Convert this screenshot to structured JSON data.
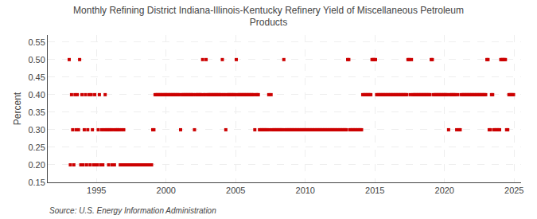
{
  "chart_data": {
    "type": "scatter",
    "title": "Monthly Refining District Indiana-Illinois-Kentucky Refinery Yield of Miscellaneous Petroleum\nProducts",
    "ylabel": "Percent",
    "annotations": [
      "Source: U.S. Energy Information Administration"
    ],
    "color": "#cc0000",
    "marker": "square",
    "line_style": "dashed",
    "grid": true,
    "xlim": [
      1991.5,
      2025.5
    ],
    "xticks": [
      1995,
      2000,
      2005,
      2010,
      2015,
      2020,
      2025
    ],
    "ylim": [
      0.15,
      0.57
    ],
    "yticks": [
      0.15,
      {
        "value": 0.2,
        "label": "0.20"
      },
      0.25,
      {
        "value": 0.3,
        "label": "0.30"
      },
      0.35,
      {
        "value": 0.4,
        "label": "0.40"
      },
      0.45,
      {
        "value": 0.5,
        "label": "0.50"
      },
      0.55
    ],
    "x": [
      1993.0416666667,
      1993.125,
      1993.2083333333,
      1993.2916666667,
      1993.375,
      1993.4583333333,
      1993.5416666667,
      1993.625,
      1993.7083333333,
      1993.7916666667,
      1993.875,
      1993.9583333333,
      1994.0416666667,
      1994.125,
      1994.2083333333,
      1994.2916666667,
      1994.375,
      1994.4583333333,
      1994.5416666667,
      1994.625,
      1994.7083333333,
      1994.7916666667,
      1994.875,
      1994.9583333333,
      1995.0416666667,
      1995.125,
      1995.2083333333,
      1995.2916666667,
      1995.375,
      1995.4583333333,
      1995.5416666667,
      1995.625,
      1995.7083333333,
      1995.7916666667,
      1995.875,
      1995.9583333333,
      1996.0416666667,
      1996.125,
      1996.2083333333,
      1996.2916666667,
      1996.375,
      1996.4583333333,
      1996.5416666667,
      1996.625,
      1996.7083333333,
      1996.7916666667,
      1996.875,
      1996.9583333333,
      1997.0416666667,
      1997.125,
      1997.2083333333,
      1997.2916666667,
      1997.375,
      1997.4583333333,
      1997.5416666667,
      1997.625,
      1997.7083333333,
      1997.7916666667,
      1997.875,
      1997.9583333333,
      1998.0416666667,
      1998.125,
      1998.2083333333,
      1998.2916666667,
      1998.375,
      1998.4583333333,
      1998.5416666667,
      1998.625,
      1998.7083333333,
      1998.7916666667,
      1998.875,
      1998.9583333333,
      1999.0416666667,
      1999.125,
      1999.2083333333,
      1999.2916666667,
      1999.375,
      1999.4583333333,
      1999.5416666667,
      1999.625,
      1999.7083333333,
      1999.7916666667,
      1999.875,
      1999.9583333333,
      2000.0416666667,
      2000.125,
      2000.2083333333,
      2000.2916666667,
      2000.375,
      2000.4583333333,
      2000.5416666667,
      2000.625,
      2000.7083333333,
      2000.7916666667,
      2000.875,
      2000.9583333333,
      2001.0416666667,
      2001.125,
      2001.2083333333,
      2001.2916666667,
      2001.375,
      2001.4583333333,
      2001.5416666667,
      2001.625,
      2001.7083333333,
      2001.7916666667,
      2001.875,
      2001.9583333333,
      2002.0416666667,
      2002.125,
      2002.2083333333,
      2002.2916666667,
      2002.375,
      2002.4583333333,
      2002.5416666667,
      2002.625,
      2002.7083333333,
      2002.7916666667,
      2002.875,
      2002.9583333333,
      2003.0416666667,
      2003.125,
      2003.2083333333,
      2003.2916666667,
      2003.375,
      2003.4583333333,
      2003.5416666667,
      2003.625,
      2003.7083333333,
      2003.7916666667,
      2003.875,
      2003.9583333333,
      2004.0416666667,
      2004.125,
      2004.2083333333,
      2004.2916666667,
      2004.375,
      2004.4583333333,
      2004.5416666667,
      2004.625,
      2004.7083333333,
      2004.7916666667,
      2004.875,
      2004.9583333333,
      2005.0416666667,
      2005.125,
      2005.2083333333,
      2005.2916666667,
      2005.375,
      2005.4583333333,
      2005.5416666667,
      2005.625,
      2005.7083333333,
      2005.7916666667,
      2005.875,
      2005.9583333333,
      2006.0416666667,
      2006.125,
      2006.2083333333,
      2006.2916666667,
      2006.375,
      2006.4583333333,
      2006.5416666667,
      2006.625,
      2006.7083333333,
      2006.7916666667,
      2006.875,
      2006.9583333333,
      2007.0416666667,
      2007.125,
      2007.2083333333,
      2007.2916666667,
      2007.375,
      2007.4583333333,
      2007.5416666667,
      2007.625,
      2007.7083333333,
      2007.7916666667,
      2007.875,
      2007.9583333333,
      2008.0416666667,
      2008.125,
      2008.2083333333,
      2008.2916666667,
      2008.375,
      2008.4583333333,
      2008.5416666667,
      2008.625,
      2008.7083333333,
      2008.7916666667,
      2008.875,
      2008.9583333333,
      2009.0416666667,
      2009.125,
      2009.2083333333,
      2009.2916666667,
      2009.375,
      2009.4583333333,
      2009.5416666667,
      2009.625,
      2009.7083333333,
      2009.7916666667,
      2009.875,
      2009.9583333333,
      2010.0416666667,
      2010.125,
      2010.2083333333,
      2010.2916666667,
      2010.375,
      2010.4583333333,
      2010.5416666667,
      2010.625,
      2010.7083333333,
      2010.7916666667,
      2010.875,
      2010.9583333333,
      2011.0416666667,
      2011.125,
      2011.2083333333,
      2011.2916666667,
      2011.375,
      2011.4583333333,
      2011.5416666667,
      2011.625,
      2011.7083333333,
      2011.7916666667,
      2011.875,
      2011.9583333333,
      2012.0416666667,
      2012.125,
      2012.2083333333,
      2012.2916666667,
      2012.375,
      2012.4583333333,
      2012.5416666667,
      2012.625,
      2012.7083333333,
      2012.7916666667,
      2012.875,
      2012.9583333333,
      2013.0416666667,
      2013.125,
      2013.2083333333,
      2013.2916666667,
      2013.375,
      2013.4583333333,
      2013.5416666667,
      2013.625,
      2013.7083333333,
      2013.7916666667,
      2013.875,
      2013.9583333333,
      2014.0416666667,
      2014.125,
      2014.2083333333,
      2014.2916666667,
      2014.375,
      2014.4583333333,
      2014.5416666667,
      2014.625,
      2014.7083333333,
      2014.7916666667,
      2014.875,
      2014.9583333333,
      2015.0416666667,
      2015.125,
      2015.2083333333,
      2015.2916666667,
      2015.375,
      2015.4583333333,
      2015.5416666667,
      2015.625,
      2015.7083333333,
      2015.7916666667,
      2015.875,
      2015.9583333333,
      2016.0416666667,
      2016.125,
      2016.2083333333,
      2016.2916666667,
      2016.375,
      2016.4583333333,
      2016.5416666667,
      2016.625,
      2016.7083333333,
      2016.7916666667,
      2016.875,
      2016.9583333333,
      2017.0416666667,
      2017.125,
      2017.2083333333,
      2017.2916666667,
      2017.375,
      2017.4583333333,
      2017.5416666667,
      2017.625,
      2017.7083333333,
      2017.7916666667,
      2017.875,
      2017.9583333333,
      2018.0416666667,
      2018.125,
      2018.2083333333,
      2018.2916666667,
      2018.375,
      2018.4583333333,
      2018.5416666667,
      2018.625,
      2018.7083333333,
      2018.7916666667,
      2018.875,
      2018.9583333333,
      2019.0416666667,
      2019.125,
      2019.2083333333,
      2019.2916666667,
      2019.375,
      2019.4583333333,
      2019.5416666667,
      2019.625,
      2019.7083333333,
      2019.7916666667,
      2019.875,
      2019.9583333333,
      2020.0416666667,
      2020.125,
      2020.2083333333,
      2020.2916666667,
      2020.375,
      2020.4583333333,
      2020.5416666667,
      2020.625,
      2020.7083333333,
      2020.7916666667,
      2020.875,
      2020.9583333333,
      2021.0416666667,
      2021.125,
      2021.2083333333,
      2021.2916666667,
      2021.375,
      2021.4583333333,
      2021.5416666667,
      2021.625,
      2021.7083333333,
      2021.7916666667,
      2021.875,
      2021.9583333333,
      2022.0416666667,
      2022.125,
      2022.2083333333,
      2022.2916666667,
      2022.375,
      2022.4583333333,
      2022.5416666667,
      2022.625,
      2022.7083333333,
      2022.7916666667,
      2022.875,
      2022.9583333333,
      2023.0416666667,
      2023.125,
      2023.2083333333,
      2023.2916666667,
      2023.375,
      2023.4583333333,
      2023.5416666667,
      2023.625,
      2023.7083333333,
      2023.7916666667,
      2023.875,
      2023.9583333333,
      2024.0416666667,
      2024.125,
      2024.2083333333,
      2024.2916666667,
      2024.375,
      2024.4583333333,
      2024.5416666667,
      2024.625,
      2024.7083333333,
      2024.7916666667,
      2024.875,
      2024.9583333333
    ],
    "values": [
      0.5,
      0.2,
      0.4,
      0.3,
      0.2,
      0.4,
      0.3,
      0.4,
      0.3,
      0.5,
      0.2,
      0.4,
      0.2,
      0.3,
      0.4,
      0.2,
      0.3,
      0.4,
      0.2,
      0.4,
      0.3,
      0.2,
      0.4,
      0.2,
      0.2,
      0.3,
      0.4,
      0.2,
      0.3,
      0.2,
      0.3,
      0.4,
      0.3,
      0.3,
      0.2,
      0.3,
      0.3,
      0.2,
      0.3,
      0.2,
      0.3,
      0.3,
      0.3,
      0.3,
      0.2,
      0.3,
      0.2,
      0.3,
      0.2,
      0.2,
      0.2,
      0.2,
      0.2,
      0.2,
      0.2,
      0.2,
      0.2,
      0.2,
      0.2,
      0.2,
      0.2,
      0.2,
      0.2,
      0.2,
      0.2,
      0.2,
      0.2,
      0.2,
      0.2,
      0.2,
      0.2,
      0.2,
      0.3,
      0.3,
      0.4,
      0.4,
      0.4,
      0.4,
      0.4,
      0.4,
      0.4,
      0.4,
      0.4,
      0.4,
      0.4,
      0.4,
      0.4,
      0.4,
      0.4,
      0.4,
      0.4,
      0.4,
      0.4,
      0.4,
      0.4,
      0.4,
      0.3,
      0.4,
      0.4,
      0.4,
      0.4,
      0.4,
      0.4,
      0.4,
      0.4,
      0.4,
      0.4,
      0.4,
      0.3,
      0.4,
      0.4,
      0.4,
      0.4,
      0.4,
      0.4,
      0.5,
      0.4,
      0.4,
      0.5,
      0.4,
      0.4,
      0.4,
      0.4,
      0.4,
      0.4,
      0.4,
      0.4,
      0.4,
      0.4,
      0.4,
      0.4,
      0.4,
      0.5,
      0.4,
      0.4,
      0.3,
      0.4,
      0.4,
      0.4,
      0.4,
      0.4,
      0.4,
      0.4,
      0.4,
      0.5,
      0.4,
      0.4,
      0.4,
      0.4,
      0.4,
      0.4,
      0.4,
      0.4,
      0.4,
      0.4,
      0.4,
      0.4,
      0.4,
      0.4,
      0.4,
      0.3,
      0.4,
      0.4,
      0.4,
      0.3,
      0.3,
      0.3,
      0.3,
      0.3,
      0.3,
      0.3,
      0.3,
      0.4,
      0.3,
      0.4,
      0.3,
      0.3,
      0.3,
      0.3,
      0.3,
      0.3,
      0.3,
      0.3,
      0.3,
      0.3,
      0.5,
      0.3,
      0.3,
      0.3,
      0.3,
      0.3,
      0.3,
      0.3,
      0.3,
      0.3,
      0.3,
      0.3,
      0.3,
      0.3,
      0.3,
      0.3,
      0.3,
      0.3,
      0.3,
      0.3,
      0.3,
      0.3,
      0.3,
      0.3,
      0.3,
      0.3,
      0.3,
      0.3,
      0.3,
      0.3,
      0.3,
      0.3,
      0.3,
      0.3,
      0.3,
      0.3,
      0.3,
      0.3,
      0.3,
      0.3,
      0.3,
      0.3,
      0.3,
      0.3,
      0.3,
      0.3,
      0.3,
      0.3,
      0.3,
      0.3,
      0.3,
      0.3,
      0.3,
      0.3,
      0.3,
      0.5,
      0.5,
      0.3,
      0.3,
      0.3,
      0.3,
      0.3,
      0.3,
      0.3,
      0.3,
      0.3,
      0.3,
      0.3,
      0.4,
      0.4,
      0.4,
      0.4,
      0.4,
      0.4,
      0.4,
      0.4,
      0.5,
      0.5,
      0.5,
      0.5,
      0.4,
      0.4,
      0.4,
      0.4,
      0.4,
      0.4,
      0.4,
      0.4,
      0.4,
      0.4,
      0.4,
      0.4,
      0.4,
      0.4,
      0.4,
      0.4,
      0.4,
      0.4,
      0.4,
      0.4,
      0.4,
      0.4,
      0.4,
      0.4,
      0.4,
      0.4,
      0.4,
      0.5,
      0.5,
      0.4,
      0.5,
      0.4,
      0.4,
      0.4,
      0.4,
      0.4,
      0.4,
      0.4,
      0.4,
      0.4,
      0.4,
      0.4,
      0.4,
      0.4,
      0.4,
      0.4,
      0.4,
      0.5,
      0.5,
      0.4,
      0.4,
      0.4,
      0.4,
      0.4,
      0.4,
      0.4,
      0.4,
      0.4,
      0.4,
      0.4,
      0.4,
      0.4,
      0.3,
      0.4,
      0.4,
      0.4,
      0.4,
      0.4,
      0.4,
      0.3,
      0.4,
      0.3,
      0.3,
      0.4,
      0.4,
      0.4,
      0.4,
      0.4,
      0.4,
      0.4,
      0.4,
      0.4,
      0.4,
      0.4,
      0.4,
      0.4,
      0.4,
      0.4,
      0.4,
      0.4,
      0.4,
      0.4,
      0.4,
      0.4,
      0.4,
      0.5,
      0.5,
      0.3,
      0.3,
      0.4,
      0.4,
      0.3,
      0.3,
      0.3,
      0.3,
      0.3,
      0.3,
      0.5,
      0.5,
      0.5,
      0.5,
      0.5,
      0.3,
      0.3,
      0.4,
      0.4,
      0.4,
      0.4,
      0.4
    ]
  }
}
